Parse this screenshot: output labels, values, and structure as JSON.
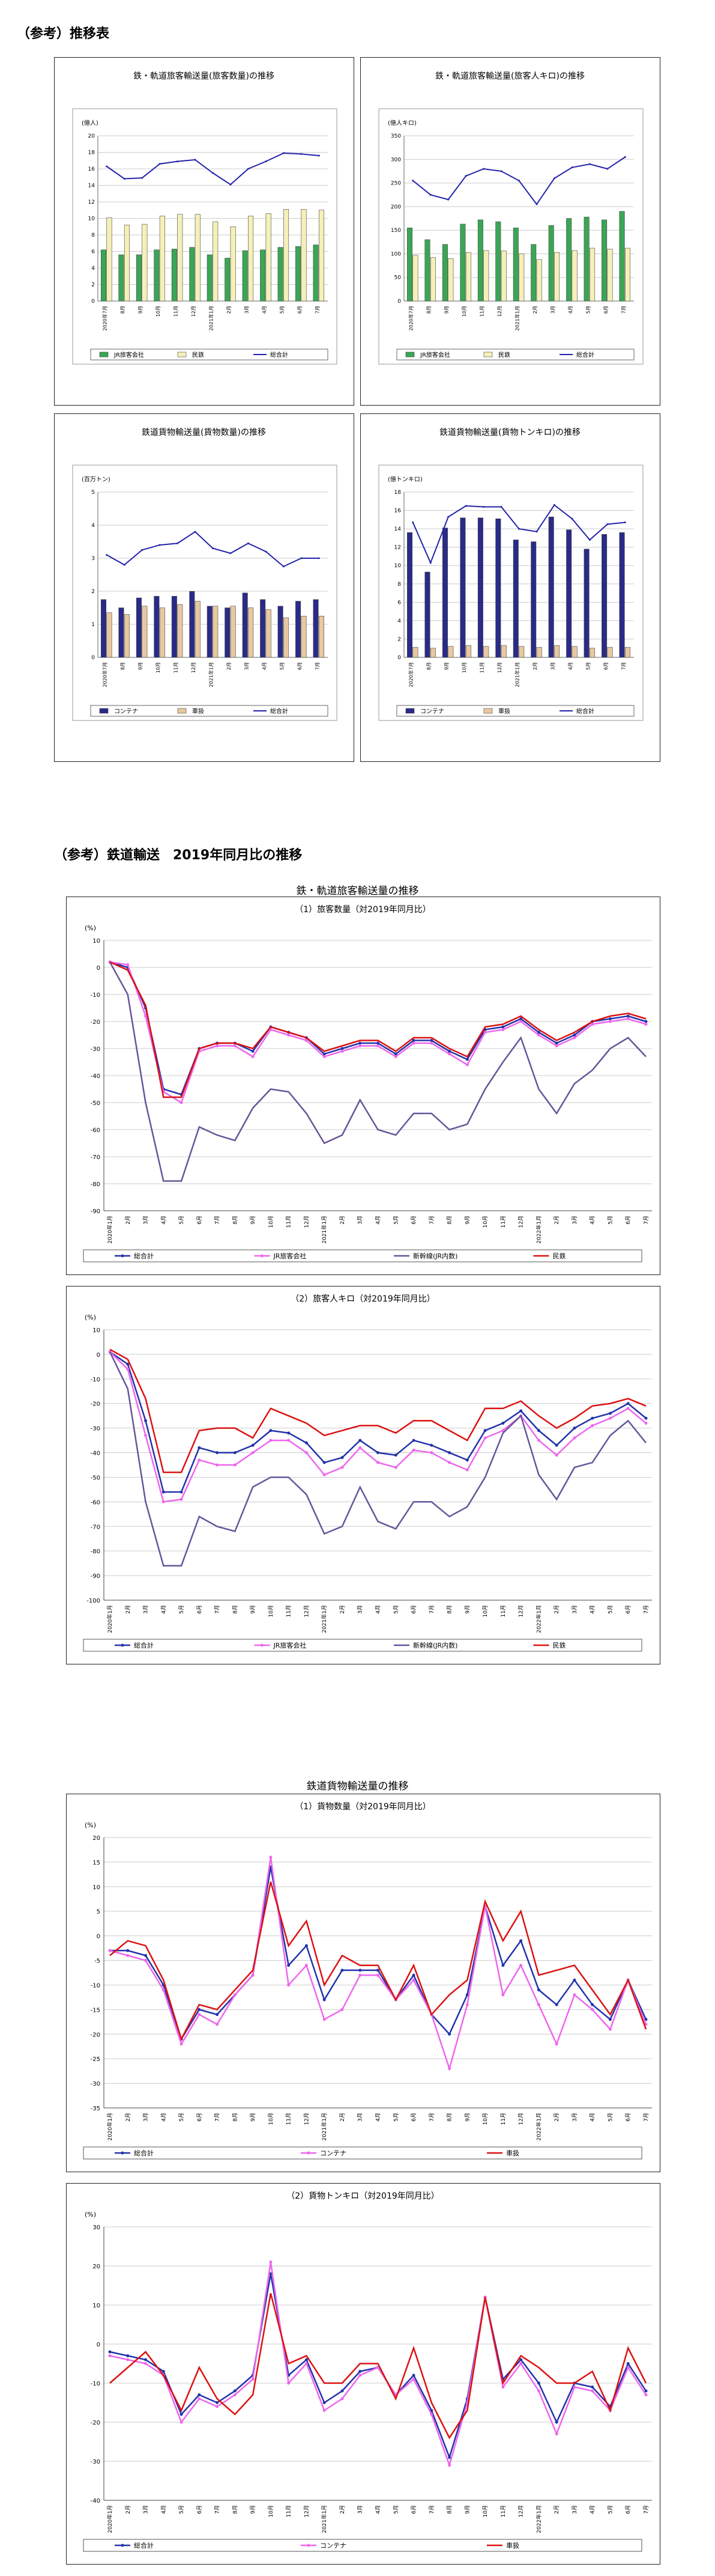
{
  "headings": {
    "h1": "（参考）推移表",
    "h2": "（参考）鉄道輸送　2019年同月比の推移"
  },
  "section_titles": {
    "passenger": "鉄・軌道旅客輸送量の推移",
    "freight": "鉄道貨物輸送量の推移"
  },
  "small_x": [
    "2020年7月",
    "8月",
    "9月",
    "10月",
    "11月",
    "12月",
    "2021年1月",
    "2月",
    "3月",
    "4月",
    "5月",
    "6月",
    "7月"
  ],
  "big_x": [
    "2020年1月",
    "2月",
    "3月",
    "4月",
    "5月",
    "6月",
    "7月",
    "8月",
    "9月",
    "10月",
    "11月",
    "12月",
    "2021年1月",
    "2月",
    "3月",
    "4月",
    "5月",
    "6月",
    "7月",
    "8月",
    "9月",
    "10月",
    "11月",
    "12月",
    "2022年1月",
    "2月",
    "3月",
    "4月",
    "5月",
    "6月",
    "7月"
  ],
  "chart_data": [
    {
      "id": "c1",
      "type": "bar+line",
      "title": "鉄・軌道旅客輸送量(旅客数量)の推移",
      "unit": "(億人)",
      "ylim": [
        0,
        20
      ],
      "yticks": [
        0,
        2,
        4,
        6,
        8,
        10,
        12,
        14,
        16,
        18,
        20
      ],
      "series": [
        {
          "name": "JR旅客会社",
          "type": "bar",
          "color": "#3aa655",
          "values": [
            6.2,
            5.6,
            5.6,
            6.2,
            6.3,
            6.5,
            5.6,
            5.2,
            6.1,
            6.2,
            6.5,
            6.6,
            6.8
          ]
        },
        {
          "name": "民鉄",
          "type": "bar",
          "color": "#f5f0b8",
          "values": [
            10.1,
            9.2,
            9.3,
            10.3,
            10.5,
            10.5,
            9.6,
            9.0,
            10.3,
            10.6,
            11.1,
            11.1,
            11.0
          ]
        },
        {
          "name": "総合計",
          "type": "line",
          "color": "#2222aa",
          "values": [
            16.3,
            14.8,
            14.9,
            16.6,
            16.9,
            17.1,
            15.5,
            14.1,
            16.0,
            16.9,
            17.9,
            17.8,
            17.6
          ]
        }
      ]
    },
    {
      "id": "c2",
      "type": "bar+line",
      "title": "鉄・軌道旅客輸送量(旅客人キロ)の推移",
      "unit": "(億人キロ)",
      "ylim": [
        0,
        350
      ],
      "yticks": [
        0,
        50,
        100,
        150,
        200,
        250,
        300,
        350
      ],
      "series": [
        {
          "name": "JR旅客会社",
          "type": "bar",
          "color": "#3aa655",
          "values": [
            155,
            130,
            120,
            163,
            172,
            168,
            155,
            120,
            160,
            175,
            178,
            172,
            190
          ]
        },
        {
          "name": "民鉄",
          "type": "bar",
          "color": "#f5f0b8",
          "values": [
            97,
            92,
            90,
            103,
            107,
            106,
            100,
            88,
            103,
            107,
            112,
            110,
            112
          ]
        },
        {
          "name": "総合計",
          "type": "line",
          "color": "#2222aa",
          "values": [
            255,
            225,
            215,
            265,
            280,
            275,
            255,
            205,
            260,
            283,
            290,
            280,
            305
          ]
        }
      ]
    },
    {
      "id": "c3",
      "type": "bar+line",
      "title": "鉄道貨物輸送量(貨物数量)の推移",
      "unit": "(百万トン)",
      "ylim": [
        0,
        5
      ],
      "yticks": [
        0,
        1,
        2,
        3,
        4,
        5
      ],
      "series": [
        {
          "name": "コンテナ",
          "type": "bar",
          "color": "#2a2a88",
          "values": [
            1.75,
            1.5,
            1.8,
            1.85,
            1.85,
            2.0,
            1.55,
            1.5,
            1.95,
            1.75,
            1.55,
            1.7,
            1.75
          ]
        },
        {
          "name": "車扱",
          "type": "bar",
          "color": "#e8c8a0",
          "values": [
            1.35,
            1.3,
            1.55,
            1.5,
            1.6,
            1.7,
            1.55,
            1.55,
            1.5,
            1.45,
            1.2,
            1.25,
            1.25
          ]
        },
        {
          "name": "総合計",
          "type": "line",
          "color": "#2222aa",
          "values": [
            3.1,
            2.8,
            3.25,
            3.4,
            3.45,
            3.8,
            3.3,
            3.15,
            3.45,
            3.2,
            2.75,
            3.0,
            3.0
          ]
        }
      ]
    },
    {
      "id": "c4",
      "type": "bar+line",
      "title": "鉄道貨物輸送量(貨物トンキロ)の推移",
      "unit": "(億トンキロ)",
      "ylim": [
        0,
        18
      ],
      "yticks": [
        0,
        2,
        4,
        6,
        8,
        10,
        12,
        14,
        16,
        18
      ],
      "series": [
        {
          "name": "コンテナ",
          "type": "bar",
          "color": "#2a2a88",
          "values": [
            13.6,
            9.3,
            14.1,
            15.2,
            15.2,
            15.1,
            12.8,
            12.6,
            15.3,
            13.9,
            11.8,
            13.4,
            13.6
          ]
        },
        {
          "name": "車扱",
          "type": "bar",
          "color": "#e8c8a0",
          "values": [
            1.1,
            1.0,
            1.2,
            1.3,
            1.2,
            1.3,
            1.2,
            1.1,
            1.3,
            1.2,
            1.0,
            1.1,
            1.1
          ]
        },
        {
          "name": "総合計",
          "type": "line",
          "color": "#2222aa",
          "values": [
            14.7,
            10.3,
            15.3,
            16.5,
            16.4,
            16.4,
            14.0,
            13.7,
            16.6,
            15.1,
            12.8,
            14.5,
            14.7
          ]
        }
      ]
    },
    {
      "id": "c5",
      "type": "line",
      "title": "（1）旅客数量（対2019年同月比）",
      "unit": "(%)",
      "ylim": [
        -90,
        10
      ],
      "yticks": [
        10,
        0,
        -10,
        -20,
        -30,
        -40,
        -50,
        -60,
        -70,
        -80,
        -90
      ],
      "series": [
        {
          "name": "総合計",
          "color": "#2233aa",
          "marker": true,
          "values": [
            2,
            0,
            -15,
            -45,
            -47,
            -30,
            -28,
            -28,
            -31,
            -22,
            -24,
            -26,
            -32,
            -30,
            -28,
            -28,
            -32,
            -27,
            -27,
            -31,
            -34,
            -23,
            -22,
            -19,
            -24,
            -28,
            -25,
            -20,
            -19,
            -18,
            -20
          ]
        },
        {
          "name": "JR旅客会社",
          "color": "#ee66ee",
          "marker": true,
          "values": [
            2,
            1,
            -18,
            -46,
            -50,
            -31,
            -29,
            -29,
            -33,
            -23,
            -25,
            -27,
            -33,
            -31,
            -29,
            -29,
            -33,
            -28,
            -28,
            -32,
            -36,
            -24,
            -23,
            -20,
            -25,
            -29,
            -26,
            -21,
            -20,
            -19,
            -21
          ]
        },
        {
          "name": "新幹線(JR内数)",
          "color": "#665599",
          "marker": false,
          "values": [
            2,
            -10,
            -50,
            -79,
            -79,
            -59,
            -62,
            -64,
            -52,
            -45,
            -46,
            -54,
            -65,
            -62,
            -49,
            -60,
            -62,
            -54,
            -54,
            -60,
            -58,
            -45,
            -35,
            -26,
            -45,
            -54,
            -43,
            -38,
            -30,
            -26,
            -33
          ]
        },
        {
          "name": "民鉄",
          "color": "#dd1111",
          "marker": false,
          "values": [
            2,
            -1,
            -14,
            -48,
            -48,
            -30,
            -28,
            -28,
            -30,
            -22,
            -24,
            -26,
            -31,
            -29,
            -27,
            -27,
            -31,
            -26,
            -26,
            -30,
            -33,
            -22,
            -21,
            -18,
            -23,
            -27,
            -24,
            -20,
            -18,
            -17,
            -19
          ]
        }
      ]
    },
    {
      "id": "c6",
      "type": "line",
      "title": "（2）旅客人キロ（対2019年同月比）",
      "unit": "(%)",
      "ylim": [
        -100,
        10
      ],
      "yticks": [
        10,
        0,
        -10,
        -20,
        -30,
        -40,
        -50,
        -60,
        -70,
        -80,
        -90,
        -100
      ],
      "series": [
        {
          "name": "総合計",
          "color": "#2233aa",
          "marker": true,
          "values": [
            1,
            -4,
            -27,
            -56,
            -56,
            -38,
            -40,
            -40,
            -37,
            -31,
            -32,
            -36,
            -44,
            -42,
            -35,
            -40,
            -41,
            -35,
            -37,
            -40,
            -43,
            -31,
            -28,
            -23,
            -31,
            -37,
            -30,
            -26,
            -24,
            -20,
            -26
          ]
        },
        {
          "name": "JR旅客会社",
          "color": "#ee66ee",
          "marker": true,
          "values": [
            1,
            -6,
            -33,
            -60,
            -59,
            -43,
            -45,
            -45,
            -40,
            -35,
            -35,
            -40,
            -49,
            -46,
            -38,
            -44,
            -46,
            -39,
            -40,
            -44,
            -47,
            -34,
            -31,
            -25,
            -35,
            -41,
            -34,
            -29,
            -26,
            -22,
            -28
          ]
        },
        {
          "name": "新幹線(JR内数)",
          "color": "#665599",
          "marker": false,
          "values": [
            1,
            -14,
            -60,
            -86,
            -86,
            -66,
            -70,
            -72,
            -54,
            -50,
            -50,
            -57,
            -73,
            -70,
            -54,
            -68,
            -71,
            -60,
            -60,
            -66,
            -62,
            -50,
            -32,
            -25,
            -49,
            -59,
            -46,
            -44,
            -33,
            -27,
            -36
          ]
        },
        {
          "name": "民鉄",
          "color": "#dd1111",
          "marker": false,
          "values": [
            2,
            -2,
            -18,
            -48,
            -48,
            -31,
            -30,
            -30,
            -34,
            -22,
            -25,
            -28,
            -33,
            -31,
            -29,
            -29,
            -32,
            -27,
            -27,
            -31,
            -35,
            -22,
            -22,
            -19,
            -25,
            -30,
            -26,
            -21,
            -20,
            -18,
            -21
          ]
        }
      ]
    },
    {
      "id": "c7",
      "type": "line",
      "title": "（1）貨物数量（対2019年同月比）",
      "unit": "(%)",
      "ylim": [
        -35,
        20
      ],
      "yticks": [
        20,
        15,
        10,
        5,
        0,
        -5,
        -10,
        -15,
        -20,
        -25,
        -30,
        -35
      ],
      "series": [
        {
          "name": "総合計",
          "color": "#2233aa",
          "marker": true,
          "values": [
            -3,
            -3,
            -4,
            -10,
            -21,
            -15,
            -16,
            -12,
            -8,
            14,
            -6,
            -2,
            -13,
            -7,
            -7,
            -7,
            -13,
            -8,
            -16,
            -20,
            -12,
            6,
            -6,
            -1,
            -11,
            -14,
            -9,
            -14,
            -17,
            -9,
            -17
          ]
        },
        {
          "name": "コンテナ",
          "color": "#ee66ee",
          "marker": true,
          "values": [
            -3,
            -4,
            -5,
            -11,
            -22,
            -16,
            -18,
            -12,
            -8,
            16,
            -10,
            -6,
            -17,
            -15,
            -8,
            -8,
            -13,
            -9,
            -16,
            -27,
            -14,
            6,
            -12,
            -6,
            -14,
            -22,
            -12,
            -15,
            -19,
            -9,
            -18
          ]
        },
        {
          "name": "車扱",
          "color": "#dd1111",
          "marker": false,
          "values": [
            -4,
            -1,
            -2,
            -9,
            -21,
            -14,
            -15,
            -11,
            -7,
            11,
            -2,
            3,
            -10,
            -4,
            -6,
            -6,
            -13,
            -6,
            -16,
            -12,
            -9,
            7,
            -1,
            5,
            -8,
            -7,
            -6,
            -11,
            -16,
            -9,
            -19
          ]
        }
      ]
    },
    {
      "id": "c8",
      "type": "line",
      "title": "（2）貨物トンキロ（対2019年同月比）",
      "unit": "(%)",
      "ylim": [
        -40,
        30
      ],
      "yticks": [
        30,
        20,
        10,
        0,
        -10,
        -20,
        -30,
        -40
      ],
      "series": [
        {
          "name": "総合計",
          "color": "#2233aa",
          "marker": true,
          "values": [
            -2,
            -3,
            -4,
            -7,
            -18,
            -13,
            -15,
            -12,
            -8,
            18,
            -8,
            -4,
            -15,
            -12,
            -7,
            -6,
            -13,
            -8,
            -17,
            -29,
            -14,
            12,
            -9,
            -4,
            -10,
            -20,
            -10,
            -11,
            -16,
            -5,
            -12
          ]
        },
        {
          "name": "コンテナ",
          "color": "#ee66ee",
          "marker": true,
          "values": [
            -3,
            -4,
            -5,
            -8,
            -20,
            -14,
            -16,
            -13,
            -9,
            21,
            -10,
            -5,
            -17,
            -14,
            -8,
            -6,
            -13,
            -9,
            -18,
            -31,
            -15,
            12,
            -11,
            -5,
            -12,
            -23,
            -11,
            -12,
            -17,
            -6,
            -13
          ]
        },
        {
          "name": "車扱",
          "color": "#dd1111",
          "marker": false,
          "values": [
            -10,
            -6,
            -2,
            -8,
            -17,
            -6,
            -14,
            -18,
            -13,
            13,
            -5,
            -3,
            -10,
            -10,
            -5,
            -5,
            -14,
            -1,
            -15,
            -24,
            -17,
            12,
            -10,
            -3,
            -6,
            -10,
            -10,
            -7,
            -17,
            -1,
            -10
          ]
        }
      ]
    }
  ]
}
